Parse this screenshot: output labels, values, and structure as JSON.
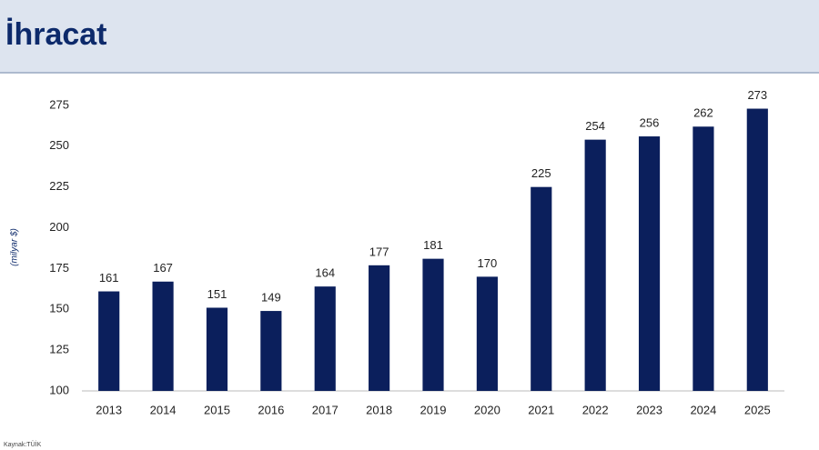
{
  "chart_data": {
    "type": "bar",
    "title": "İhracat",
    "y_label": "(milyar $)",
    "source": "Kaynak:TÜİK",
    "categories": [
      "2013",
      "2014",
      "2015",
      "2016",
      "2017",
      "2018",
      "2019",
      "2020",
      "2021",
      "2022",
      "2023",
      "2024",
      "2025"
    ],
    "values": [
      161,
      167,
      151,
      149,
      164,
      177,
      181,
      170,
      225,
      254,
      256,
      262,
      273
    ],
    "color": "#0b1f5c",
    "ylim": [
      100,
      285
    ],
    "yticks": [
      100,
      125,
      150,
      175,
      200,
      225,
      250,
      275
    ],
    "grid": false
  }
}
